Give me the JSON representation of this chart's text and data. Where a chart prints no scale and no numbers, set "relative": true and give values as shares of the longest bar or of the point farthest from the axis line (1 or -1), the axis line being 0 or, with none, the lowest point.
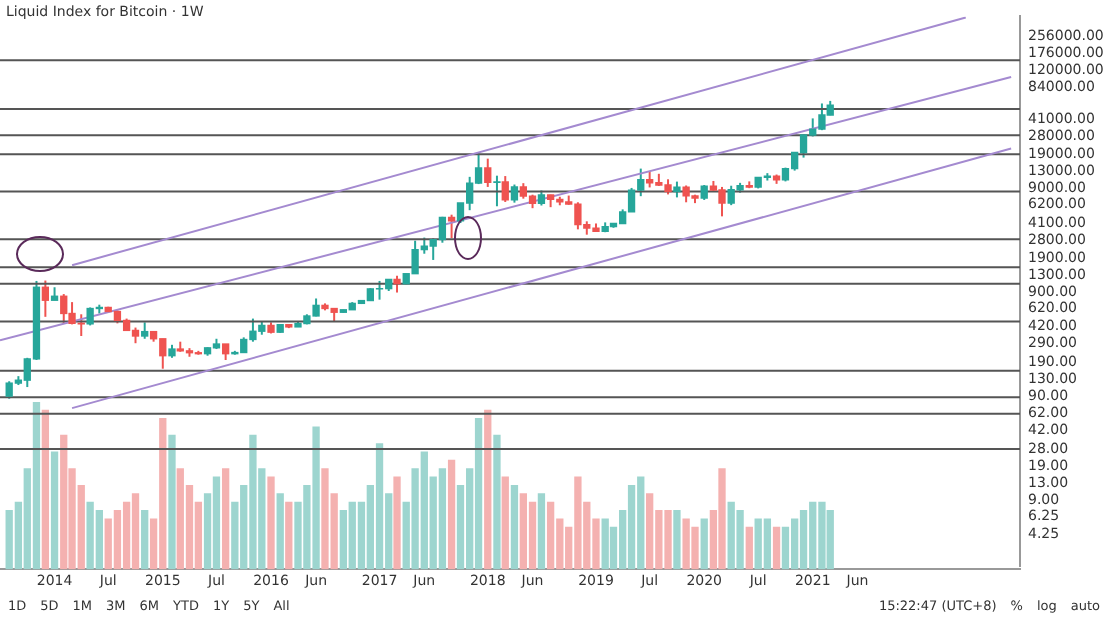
{
  "chart_data": [
    {
      "type": "candlestick",
      "title": "Liquid Index for Bitcoin · 1W",
      "log": true,
      "grid": false,
      "legend": false,
      "tick_labels": "y",
      "x": [
        "2013-08",
        "2013-09",
        "2013-10",
        "2013-11",
        "2013-12",
        "2014-01",
        "2014-02",
        "2014-03",
        "2014-04",
        "2014-05",
        "2014-06",
        "2014-07",
        "2014-08",
        "2014-09",
        "2014-10",
        "2014-11",
        "2014-12",
        "2015-01",
        "2015-02",
        "2015-03",
        "2015-04",
        "2015-05",
        "2015-06",
        "2015-07",
        "2015-08",
        "2015-09",
        "2015-10",
        "2015-11",
        "2015-12",
        "2016-01",
        "2016-02",
        "2016-03",
        "2016-04",
        "2016-05",
        "2016-06",
        "2016-07",
        "2016-08",
        "2016-09",
        "2016-10",
        "2016-11",
        "2016-12",
        "2017-01",
        "2017-02",
        "2017-03",
        "2017-04",
        "2017-05",
        "2017-06",
        "2017-07",
        "2017-08",
        "2017-09",
        "2017-10",
        "2017-11",
        "2017-12",
        "2018-01",
        "2018-02",
        "2018-03",
        "2018-04",
        "2018-05",
        "2018-06",
        "2018-07",
        "2018-08",
        "2018-09",
        "2018-10",
        "2018-11",
        "2018-12",
        "2019-01",
        "2019-02",
        "2019-03",
        "2019-04",
        "2019-05",
        "2019-06",
        "2019-07",
        "2019-08",
        "2019-09",
        "2019-10",
        "2019-11",
        "2019-12",
        "2020-01",
        "2020-02",
        "2020-03",
        "2020-04",
        "2020-05",
        "2020-06",
        "2020-07",
        "2020-08",
        "2020-09",
        "2020-10",
        "2020-11",
        "2020-12",
        "2021-01",
        "2021-02",
        "2021-03"
      ],
      "ohlc": [
        [
          90,
          125,
          85,
          120
        ],
        [
          120,
          140,
          115,
          128
        ],
        [
          128,
          210,
          110,
          205
        ],
        [
          205,
          1150,
          200,
          1000
        ],
        [
          1000,
          1160,
          520,
          750
        ],
        [
          750,
          1000,
          750,
          820
        ],
        [
          820,
          860,
          450,
          560
        ],
        [
          560,
          720,
          440,
          450
        ],
        [
          450,
          550,
          340,
          445
        ],
        [
          445,
          640,
          430,
          625
        ],
        [
          625,
          680,
          560,
          640
        ],
        [
          640,
          650,
          570,
          585
        ],
        [
          585,
          600,
          450,
          480
        ],
        [
          480,
          500,
          380,
          385
        ],
        [
          385,
          410,
          290,
          340
        ],
        [
          340,
          460,
          320,
          375
        ],
        [
          375,
          380,
          300,
          320
        ],
        [
          320,
          320,
          165,
          220
        ],
        [
          220,
          280,
          210,
          255
        ],
        [
          255,
          300,
          240,
          245
        ],
        [
          245,
          260,
          215,
          235
        ],
        [
          235,
          245,
          225,
          230
        ],
        [
          230,
          265,
          220,
          262
        ],
        [
          262,
          320,
          255,
          285
        ],
        [
          285,
          285,
          200,
          230
        ],
        [
          230,
          245,
          225,
          236
        ],
        [
          236,
          330,
          235,
          315
        ],
        [
          315,
          500,
          300,
          378
        ],
        [
          378,
          470,
          350,
          430
        ],
        [
          430,
          460,
          360,
          370
        ],
        [
          370,
          440,
          365,
          437
        ],
        [
          437,
          440,
          405,
          416
        ],
        [
          416,
          470,
          415,
          448
        ],
        [
          448,
          550,
          440,
          530
        ],
        [
          530,
          780,
          525,
          670
        ],
        [
          670,
          700,
          600,
          625
        ],
        [
          625,
          630,
          470,
          575
        ],
        [
          575,
          610,
          570,
          608
        ],
        [
          608,
          720,
          605,
          700
        ],
        [
          700,
          750,
          690,
          745
        ],
        [
          745,
          980,
          740,
          965
        ],
        [
          965,
          1150,
          760,
          970
        ],
        [
          970,
          1200,
          920,
          1190
        ],
        [
          1190,
          1290,
          890,
          1080
        ],
        [
          1080,
          1350,
          1070,
          1350
        ],
        [
          1350,
          2800,
          1340,
          2300
        ],
        [
          2300,
          3000,
          2100,
          2480
        ],
        [
          2480,
          2950,
          1830,
          2870
        ],
        [
          2870,
          4750,
          2680,
          4700
        ],
        [
          4700,
          4980,
          2970,
          4340
        ],
        [
          4340,
          6450,
          4140,
          6450
        ],
        [
          6450,
          11500,
          5500,
          10000
        ],
        [
          10000,
          19700,
          9800,
          14000
        ],
        [
          14000,
          17200,
          9200,
          10200
        ],
        [
          10200,
          11800,
          6000,
          10300
        ],
        [
          10300,
          11700,
          6600,
          6900
        ],
        [
          6900,
          9700,
          6500,
          9200
        ],
        [
          9200,
          10000,
          7100,
          7500
        ],
        [
          7500,
          7750,
          5750,
          6400
        ],
        [
          6400,
          8500,
          6100,
          7730
        ],
        [
          7730,
          7750,
          5880,
          7000
        ],
        [
          7000,
          7400,
          6130,
          6600
        ],
        [
          6600,
          7600,
          6200,
          6300
        ],
        [
          6300,
          6550,
          3600,
          4000
        ],
        [
          4000,
          4300,
          3200,
          3700
        ],
        [
          3700,
          4100,
          3400,
          3450
        ],
        [
          3450,
          4200,
          3380,
          3820
        ],
        [
          3820,
          4100,
          3730,
          4100
        ],
        [
          4100,
          5600,
          4080,
          5300
        ],
        [
          5300,
          9000,
          5300,
          8560
        ],
        [
          8560,
          13800,
          7500,
          10800
        ],
        [
          10800,
          13100,
          9100,
          10100
        ],
        [
          10100,
          12300,
          9400,
          9600
        ],
        [
          9600,
          10900,
          7800,
          8300
        ],
        [
          8300,
          10350,
          7300,
          9150
        ],
        [
          9150,
          9500,
          6550,
          7550
        ],
        [
          7550,
          7750,
          6430,
          7200
        ],
        [
          7200,
          9600,
          6900,
          9350
        ],
        [
          9350,
          10500,
          8450,
          8600
        ],
        [
          8600,
          9200,
          4800,
          6450
        ],
        [
          6450,
          9450,
          6150,
          8650
        ],
        [
          8650,
          10070,
          8100,
          9450
        ],
        [
          9450,
          10400,
          8950,
          9150
        ],
        [
          9150,
          11450,
          8900,
          11350
        ],
        [
          11350,
          12480,
          10600,
          11650
        ],
        [
          11650,
          12100,
          9850,
          10780
        ],
        [
          10780,
          14100,
          10400,
          13800
        ],
        [
          13800,
          19800,
          13200,
          19700
        ],
        [
          19700,
          29300,
          17600,
          29000
        ],
        [
          29000,
          41900,
          28100,
          33100
        ],
        [
          33100,
          58300,
          32300,
          45200
        ],
        [
          45200,
          61700,
          44900,
          56000
        ]
      ],
      "colors": [
        "#26a69a",
        "#26a69a",
        "#26a69a",
        "#26a69a",
        "#ef5350",
        "#26a69a",
        "#ef5350",
        "#ef5350",
        "#ef5350",
        "#26a69a",
        "#26a69a",
        "#ef5350",
        "#ef5350",
        "#ef5350",
        "#ef5350",
        "#26a69a",
        "#ef5350",
        "#ef5350",
        "#26a69a",
        "#ef5350",
        "#ef5350",
        "#ef5350",
        "#26a69a",
        "#26a69a",
        "#ef5350",
        "#26a69a",
        "#26a69a",
        "#26a69a",
        "#26a69a",
        "#ef5350",
        "#26a69a",
        "#ef5350",
        "#26a69a",
        "#26a69a",
        "#26a69a",
        "#ef5350",
        "#ef5350",
        "#26a69a",
        "#26a69a",
        "#26a69a",
        "#26a69a",
        "#26a69a",
        "#26a69a",
        "#ef5350",
        "#26a69a",
        "#26a69a",
        "#26a69a",
        "#26a69a",
        "#26a69a",
        "#ef5350",
        "#26a69a",
        "#26a69a",
        "#26a69a",
        "#ef5350",
        "#26a69a",
        "#ef5350",
        "#26a69a",
        "#ef5350",
        "#ef5350",
        "#26a69a",
        "#ef5350",
        "#ef5350",
        "#ef5350",
        "#ef5350",
        "#ef5350",
        "#ef5350",
        "#26a69a",
        "#26a69a",
        "#26a69a",
        "#26a69a",
        "#26a69a",
        "#ef5350",
        "#ef5350",
        "#ef5350",
        "#26a69a",
        "#ef5350",
        "#ef5350",
        "#26a69a",
        "#ef5350",
        "#ef5350",
        "#26a69a",
        "#26a69a",
        "#ef5350",
        "#26a69a",
        "#26a69a",
        "#ef5350",
        "#26a69a",
        "#26a69a",
        "#26a69a",
        "#26a69a",
        "#26a69a",
        "#26a69a"
      ],
      "series": [
        {
          "type": "line",
          "x": [
            "2014-03",
            "2022-06"
          ],
          "values": [
            1630,
            390000
          ],
          "color": "#a48ad0"
        },
        {
          "type": "line",
          "x": [
            "2013-07",
            "2022-11"
          ],
          "values": [
            309,
            104500
          ],
          "color": "#a48ad0"
        },
        {
          "type": "line",
          "x": [
            "2014-03",
            "2022-11"
          ],
          "values": [
            69,
            21500
          ],
          "color": "#a48ad0"
        }
      ],
      "ref_lines": [
        {
          "axis": "y",
          "value": 152000,
          "color": "#555555"
        },
        {
          "axis": "y",
          "value": 51500,
          "color": "#555555"
        },
        {
          "axis": "y",
          "value": 28800,
          "color": "#555555"
        },
        {
          "axis": "y",
          "value": 19000,
          "color": "#555555"
        },
        {
          "axis": "y",
          "value": 8300,
          "color": "#555555"
        },
        {
          "axis": "y",
          "value": 2900,
          "color": "#555555"
        },
        {
          "axis": "y",
          "value": 1560,
          "color": "#555555"
        },
        {
          "axis": "y",
          "value": 1080,
          "color": "#555555"
        },
        {
          "axis": "y",
          "value": 470,
          "color": "#555555"
        },
        {
          "axis": "y",
          "value": 158,
          "color": "#555555"
        },
        {
          "axis": "y",
          "value": 88,
          "color": "#555555"
        },
        {
          "axis": "y",
          "value": 61,
          "color": "#555555"
        },
        {
          "axis": "y",
          "value": 28,
          "color": "#555555"
        }
      ],
      "xlim": [
        "2013-07",
        "2022-12"
      ],
      "ylim": [
        2.1,
        400000
      ],
      "yticks": [
        {
          "value": 4.25,
          "label": "4.25"
        },
        {
          "value": 6.25,
          "label": "6.25"
        },
        {
          "value": 9,
          "label": "9.00"
        },
        {
          "value": 13,
          "label": "13.00"
        },
        {
          "value": 19,
          "label": "19.00"
        },
        {
          "value": 28,
          "label": "28.00"
        },
        {
          "value": 42,
          "label": "42.00"
        },
        {
          "value": 62,
          "label": "62.00"
        },
        {
          "value": 90,
          "label": "90.00"
        },
        {
          "value": 130,
          "label": "130.00"
        },
        {
          "value": 190,
          "label": "190.00"
        },
        {
          "value": 290,
          "label": "290.00"
        },
        {
          "value": 420,
          "label": "420.00"
        },
        {
          "value": 620,
          "label": "620.00"
        },
        {
          "value": 900,
          "label": "900.00"
        },
        {
          "value": 1300,
          "label": "1300.00"
        },
        {
          "value": 1900,
          "label": "1900.00"
        },
        {
          "value": 2800,
          "label": "2800.00"
        },
        {
          "value": 4100,
          "label": "4100.00"
        },
        {
          "value": 6200,
          "label": "6200.00"
        },
        {
          "value": 9000,
          "label": "9000.00"
        },
        {
          "value": 13000,
          "label": "13000.00"
        },
        {
          "value": 19000,
          "label": "19000.00"
        },
        {
          "value": 28000,
          "label": "28000.00"
        },
        {
          "value": 41000,
          "label": "41000.00"
        },
        {
          "value": 84000,
          "label": "84000.00"
        },
        {
          "value": 120000,
          "label": "120000.00"
        },
        {
          "value": 176000,
          "label": "176000.00"
        },
        {
          "value": 256000,
          "label": "256000.00"
        }
      ]
    },
    {
      "type": "bar",
      "relative": true,
      "grid": false,
      "legend": false,
      "tick_labels": "x",
      "x": [
        "2013-08",
        "2013-09",
        "2013-10",
        "2013-11",
        "2013-12",
        "2014-01",
        "2014-02",
        "2014-03",
        "2014-04",
        "2014-05",
        "2014-06",
        "2014-07",
        "2014-08",
        "2014-09",
        "2014-10",
        "2014-11",
        "2014-12",
        "2015-01",
        "2015-02",
        "2015-03",
        "2015-04",
        "2015-05",
        "2015-06",
        "2015-07",
        "2015-08",
        "2015-09",
        "2015-10",
        "2015-11",
        "2015-12",
        "2016-01",
        "2016-02",
        "2016-03",
        "2016-04",
        "2016-05",
        "2016-06",
        "2016-07",
        "2016-08",
        "2016-09",
        "2016-10",
        "2016-11",
        "2016-12",
        "2017-01",
        "2017-02",
        "2017-03",
        "2017-04",
        "2017-05",
        "2017-06",
        "2017-07",
        "2017-08",
        "2017-09",
        "2017-10",
        "2017-11",
        "2017-12",
        "2018-01",
        "2018-02",
        "2018-03",
        "2018-04",
        "2018-05",
        "2018-06",
        "2018-07",
        "2018-08",
        "2018-09",
        "2018-10",
        "2018-11",
        "2018-12",
        "2019-01",
        "2019-02",
        "2019-03",
        "2019-04",
        "2019-05",
        "2019-06",
        "2019-07",
        "2019-08",
        "2019-09",
        "2019-10",
        "2019-11",
        "2019-12",
        "2020-01",
        "2020-02",
        "2020-03",
        "2020-04",
        "2020-05",
        "2020-06",
        "2020-07",
        "2020-08",
        "2020-09",
        "2020-10",
        "2020-11",
        "2020-12",
        "2021-01",
        "2021-02",
        "2021-03"
      ],
      "values": [
        0.35,
        0.4,
        0.6,
        1,
        0.95,
        0.7,
        0.8,
        0.6,
        0.5,
        0.4,
        0.35,
        0.3,
        0.35,
        0.4,
        0.45,
        0.35,
        0.3,
        0.9,
        0.8,
        0.6,
        0.5,
        0.4,
        0.45,
        0.55,
        0.6,
        0.4,
        0.5,
        0.8,
        0.6,
        0.55,
        0.45,
        0.4,
        0.4,
        0.5,
        0.85,
        0.6,
        0.45,
        0.35,
        0.4,
        0.4,
        0.5,
        0.75,
        0.45,
        0.55,
        0.4,
        0.6,
        0.7,
        0.55,
        0.6,
        0.65,
        0.5,
        0.6,
        0.9,
        0.95,
        0.8,
        0.55,
        0.5,
        0.45,
        0.4,
        0.45,
        0.4,
        0.3,
        0.25,
        0.55,
        0.4,
        0.3,
        0.3,
        0.25,
        0.35,
        0.5,
        0.55,
        0.45,
        0.35,
        0.35,
        0.35,
        0.3,
        0.25,
        0.3,
        0.35,
        0.6,
        0.4,
        0.35,
        0.25,
        0.3,
        0.3,
        0.25,
        0.25,
        0.3,
        0.35,
        0.4,
        0.4,
        0.35
      ],
      "colors": [
        "#9dd5cf",
        "#9dd5cf",
        "#9dd5cf",
        "#9dd5cf",
        "#f4b1b0",
        "#9dd5cf",
        "#f4b1b0",
        "#f4b1b0",
        "#f4b1b0",
        "#9dd5cf",
        "#9dd5cf",
        "#f4b1b0",
        "#f4b1b0",
        "#f4b1b0",
        "#f4b1b0",
        "#9dd5cf",
        "#f4b1b0",
        "#f4b1b0",
        "#9dd5cf",
        "#f4b1b0",
        "#f4b1b0",
        "#f4b1b0",
        "#9dd5cf",
        "#9dd5cf",
        "#f4b1b0",
        "#9dd5cf",
        "#9dd5cf",
        "#9dd5cf",
        "#9dd5cf",
        "#f4b1b0",
        "#9dd5cf",
        "#f4b1b0",
        "#9dd5cf",
        "#9dd5cf",
        "#9dd5cf",
        "#f4b1b0",
        "#f4b1b0",
        "#9dd5cf",
        "#9dd5cf",
        "#9dd5cf",
        "#9dd5cf",
        "#9dd5cf",
        "#9dd5cf",
        "#f4b1b0",
        "#9dd5cf",
        "#9dd5cf",
        "#9dd5cf",
        "#9dd5cf",
        "#9dd5cf",
        "#f4b1b0",
        "#9dd5cf",
        "#9dd5cf",
        "#9dd5cf",
        "#f4b1b0",
        "#9dd5cf",
        "#f4b1b0",
        "#9dd5cf",
        "#f4b1b0",
        "#f4b1b0",
        "#9dd5cf",
        "#f4b1b0",
        "#f4b1b0",
        "#f4b1b0",
        "#f4b1b0",
        "#f4b1b0",
        "#f4b1b0",
        "#9dd5cf",
        "#9dd5cf",
        "#9dd5cf",
        "#9dd5cf",
        "#9dd5cf",
        "#f4b1b0",
        "#f4b1b0",
        "#f4b1b0",
        "#9dd5cf",
        "#f4b1b0",
        "#f4b1b0",
        "#9dd5cf",
        "#f4b1b0",
        "#f4b1b0",
        "#9dd5cf",
        "#9dd5cf",
        "#f4b1b0",
        "#9dd5cf",
        "#9dd5cf",
        "#f4b1b0",
        "#9dd5cf",
        "#9dd5cf",
        "#9dd5cf",
        "#9dd5cf",
        "#9dd5cf",
        "#9dd5cf"
      ],
      "xlim": [
        "2013-07",
        "2022-12"
      ],
      "xticks": [
        {
          "value": "2014-01",
          "label": "2014"
        },
        {
          "value": "2014-07",
          "label": "Jul"
        },
        {
          "value": "2015-01",
          "label": "2015"
        },
        {
          "value": "2015-07",
          "label": "Jul"
        },
        {
          "value": "2016-01",
          "label": "2016"
        },
        {
          "value": "2016-06",
          "label": "Jun"
        },
        {
          "value": "2017-01",
          "label": "2017"
        },
        {
          "value": "2017-06",
          "label": "Jun"
        },
        {
          "value": "2018-01",
          "label": "2018"
        },
        {
          "value": "2018-06",
          "label": "Jun"
        },
        {
          "value": "2019-01",
          "label": "2019"
        },
        {
          "value": "2019-07",
          "label": "Jul"
        },
        {
          "value": "2020-01",
          "label": "2020"
        },
        {
          "value": "2020-07",
          "label": "Jul"
        },
        {
          "value": "2021-01",
          "label": "2021"
        },
        {
          "value": "2021-06",
          "label": "Jun"
        }
      ],
      "annotations": [
        "1D",
        "5D",
        "1M",
        "3M",
        "6M",
        "YTD",
        "1Y",
        "5Y",
        "All",
        "15:22:47 (UTC+8)",
        "%",
        "log",
        "auto"
      ]
    }
  ]
}
